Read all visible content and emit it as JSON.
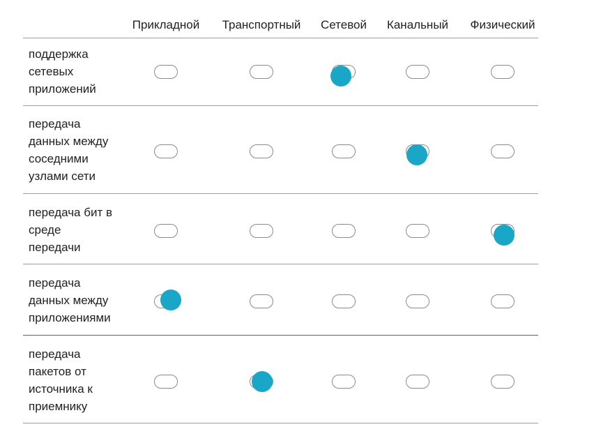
{
  "columns": [
    {
      "label": "Прикладной"
    },
    {
      "label": "Транспортный"
    },
    {
      "label": "Сетевой"
    },
    {
      "label": "Канальный"
    },
    {
      "label": "Физический"
    }
  ],
  "rows": [
    {
      "lines": [
        "поддержка",
        "сетевых",
        "приложений"
      ],
      "selected": "Сетевой"
    },
    {
      "lines": [
        "передача",
        "данных между",
        "соседними",
        "узлами сети"
      ],
      "selected": "Канальный"
    },
    {
      "lines": [
        "передача бит в",
        "среде",
        "передачи"
      ],
      "selected": "Физический"
    },
    {
      "lines": [
        "передача",
        "данных между",
        "приложениями"
      ],
      "selected": "Прикладной"
    },
    {
      "lines": [
        "передача",
        "пакетов от",
        "источника к",
        "приемнику"
      ],
      "selected": "Транспортный"
    }
  ],
  "colors": {
    "accent": "#1aa7c7",
    "toggle_border": "#8a8a8a",
    "divider": "#9e9e9e"
  }
}
